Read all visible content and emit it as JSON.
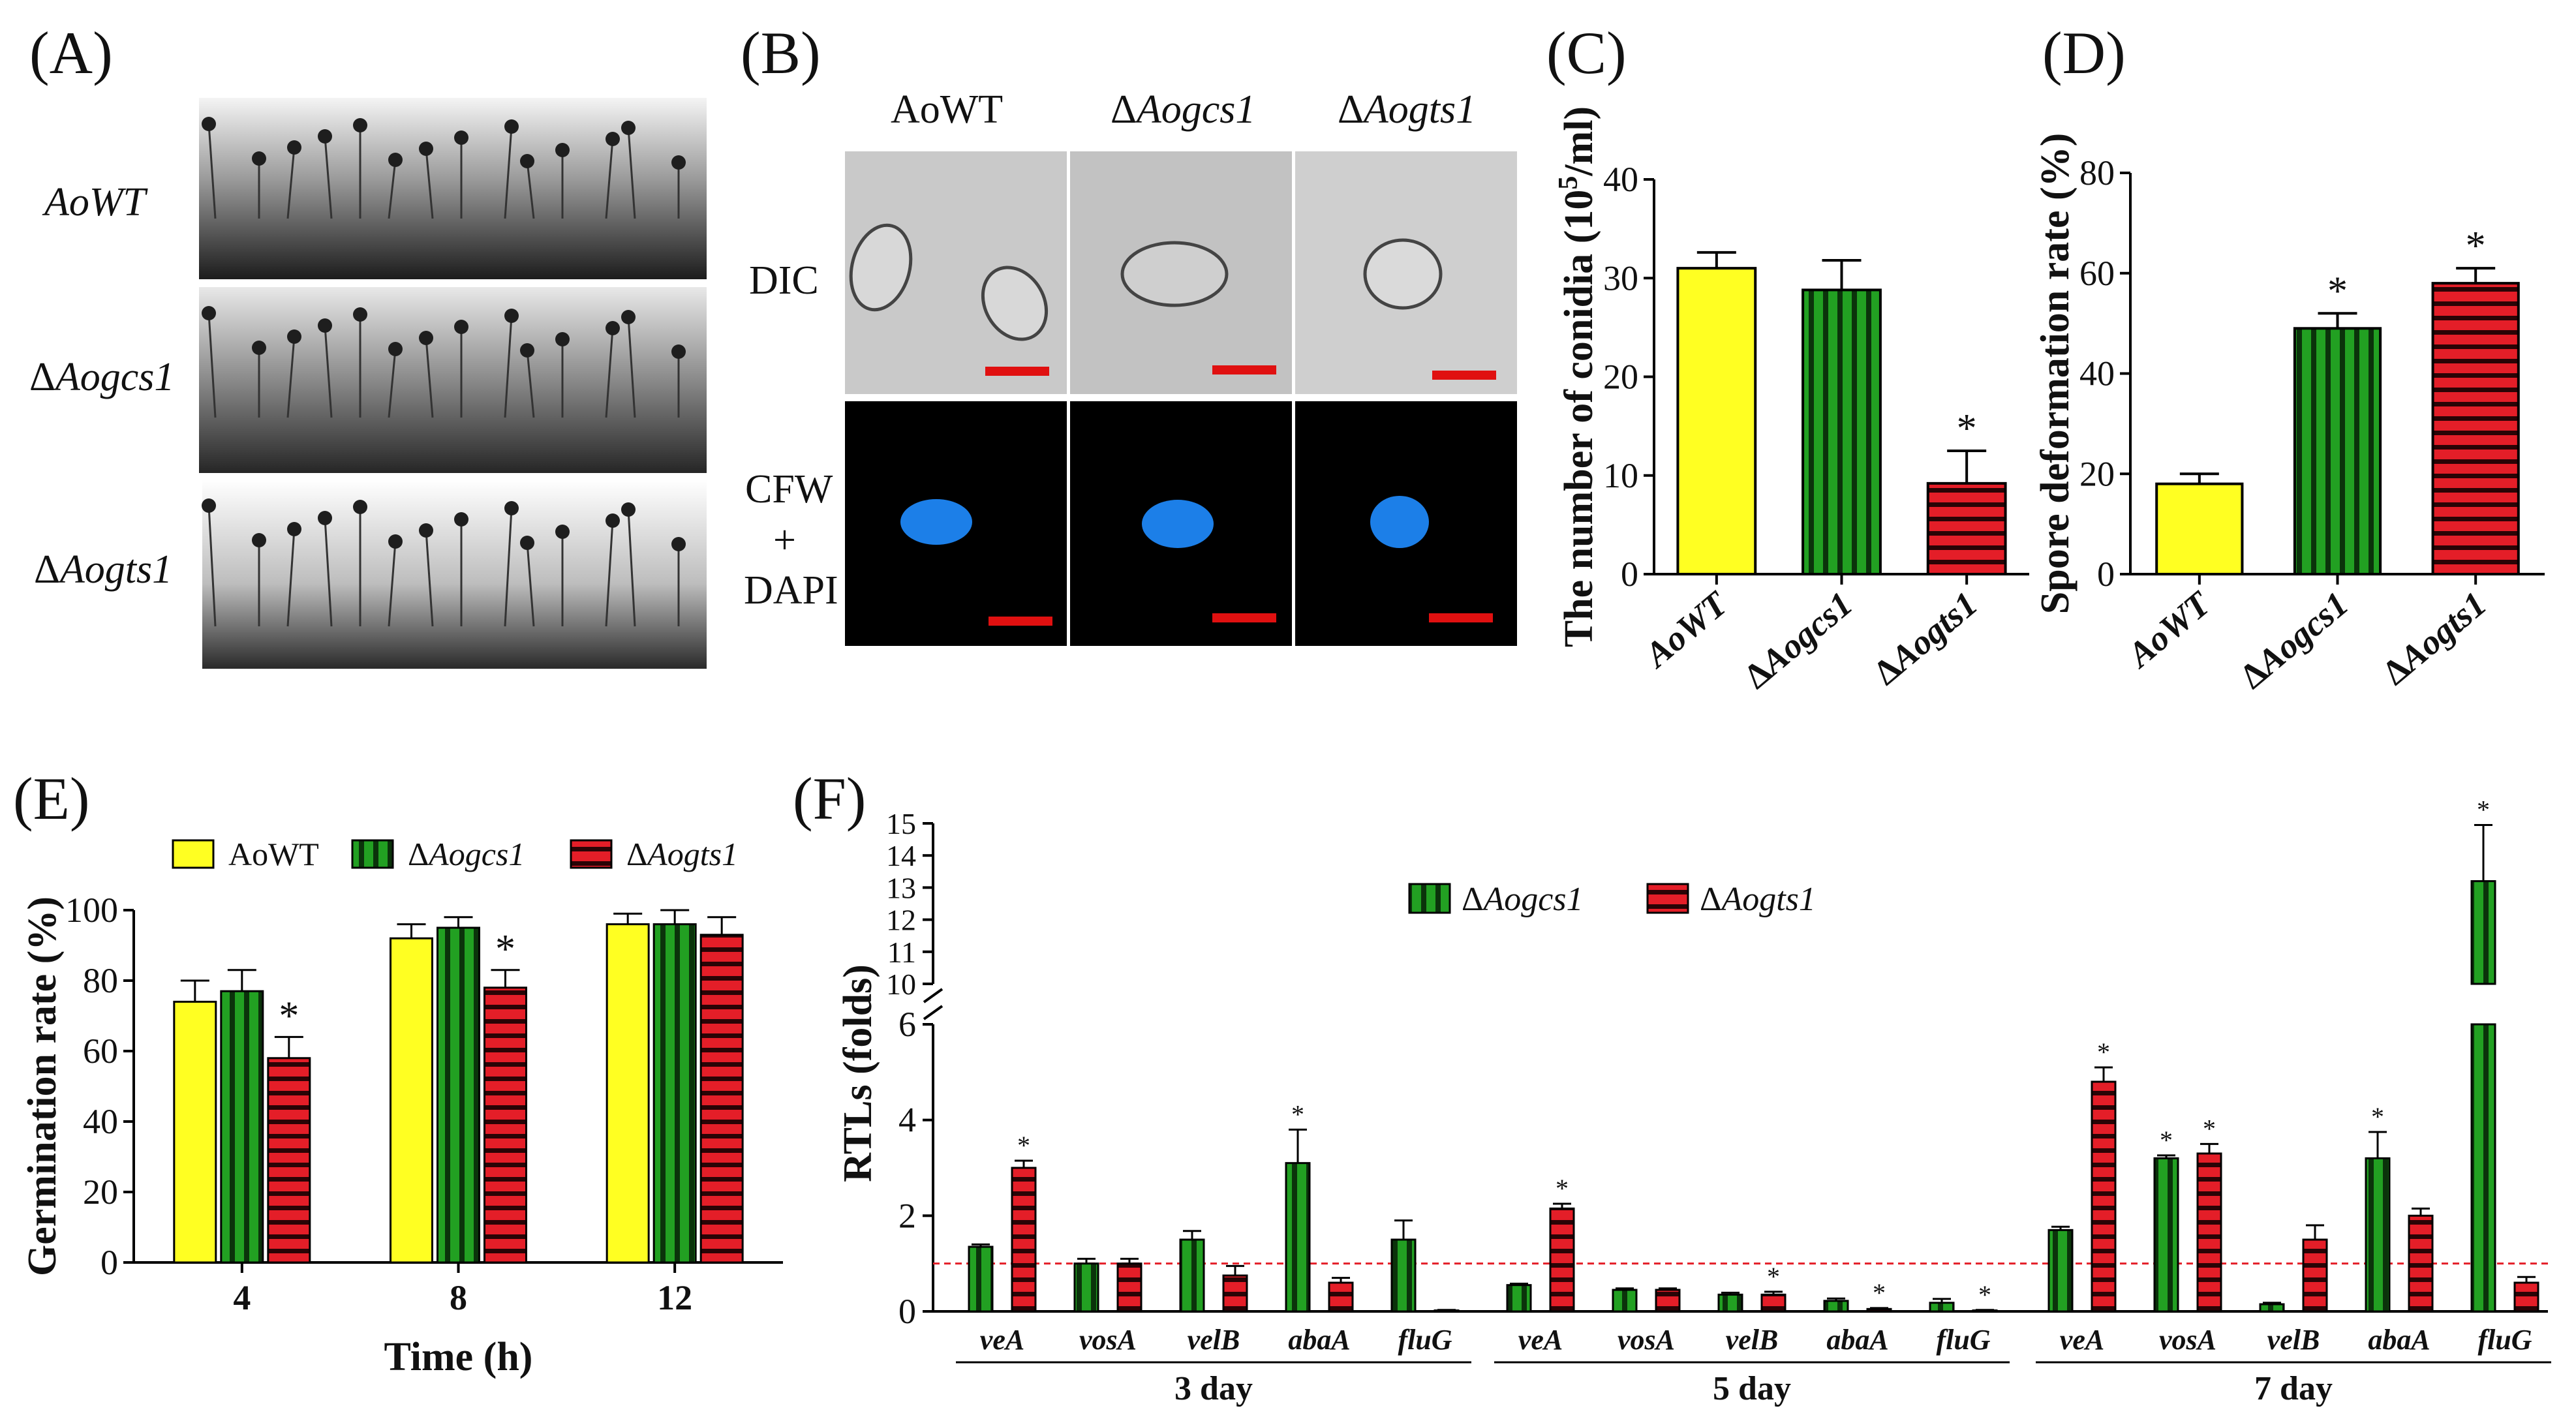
{
  "panels": {
    "A": {
      "label": "(A)",
      "rows": [
        {
          "pre": "",
          "it": "AoWT"
        },
        {
          "pre": "Δ",
          "it": "Aogcs1"
        },
        {
          "pre": "Δ",
          "it": "Aogts1"
        }
      ]
    },
    "B": {
      "label": "(B)",
      "columns": [
        {
          "pre": "",
          "it": "AoWT"
        },
        {
          "pre": "Δ",
          "it": "Aogcs1"
        },
        {
          "pre": "Δ",
          "it": "Aogts1"
        }
      ],
      "rows": [
        "DIC",
        "CFW",
        "+",
        "DAPI"
      ],
      "scale_bar_color": "#e01010"
    },
    "C": {
      "label": "(C)"
    },
    "D": {
      "label": "(D)"
    },
    "E": {
      "label": "(E)"
    },
    "F": {
      "label": "(F)"
    }
  },
  "colors": {
    "wt": "#ffff22",
    "gcs1": "#22a022",
    "gts1": "#e41e28",
    "ref_line": "#e41e28"
  },
  "chart_data": [
    {
      "panel": "C",
      "type": "bar",
      "ylabel_pre": "The number of conidia (10",
      "ylabel_sup": "5",
      "ylabel_post": "/ml)",
      "ylim": [
        0,
        40
      ],
      "yticks": [
        0,
        10,
        20,
        30,
        40
      ],
      "categories": [
        {
          "pre": "",
          "it": "AoWT"
        },
        {
          "pre": "Δ",
          "it": "Aogcs1"
        },
        {
          "pre": "Δ",
          "it": "Aogts1"
        }
      ],
      "values": [
        31.0,
        28.8,
        9.2
      ],
      "errors": [
        1.6,
        3.0,
        3.3
      ],
      "sig": [
        "",
        "",
        "*"
      ]
    },
    {
      "panel": "D",
      "type": "bar",
      "ylabel": "Spore deformation rate (%)",
      "ylim": [
        0,
        80
      ],
      "yticks": [
        0,
        20,
        40,
        60,
        80
      ],
      "categories": [
        {
          "pre": "",
          "it": "AoWT"
        },
        {
          "pre": "Δ",
          "it": "Aogcs1"
        },
        {
          "pre": "Δ",
          "it": "Aogts1"
        }
      ],
      "values": [
        18.0,
        49.0,
        58.0
      ],
      "errors": [
        2.0,
        3.0,
        3.0
      ],
      "sig": [
        "",
        "*",
        "*"
      ]
    },
    {
      "panel": "E",
      "type": "bar",
      "xlabel": "Time (h)",
      "ylabel": "Germination rate (%)",
      "ylim": [
        0,
        100
      ],
      "yticks": [
        0,
        20,
        40,
        60,
        80,
        100
      ],
      "categories": [
        "4",
        "8",
        "12"
      ],
      "legend_position": "top",
      "series": [
        {
          "name_pre": "",
          "name_it": "AoWT",
          "values": [
            74,
            92,
            96
          ],
          "errors": [
            6,
            4,
            3
          ],
          "sig": [
            "",
            "",
            ""
          ]
        },
        {
          "name_pre": "Δ",
          "name_it": "Aogcs1",
          "values": [
            77,
            95,
            96
          ],
          "errors": [
            6,
            3,
            4
          ],
          "sig": [
            "",
            "",
            ""
          ]
        },
        {
          "name_pre": "Δ",
          "name_it": "Aogts1",
          "values": [
            58,
            78,
            93
          ],
          "errors": [
            6,
            5,
            5
          ],
          "sig": [
            "*",
            "*",
            ""
          ]
        }
      ]
    },
    {
      "panel": "F",
      "type": "bar",
      "ylabel": "RTLs (folds)",
      "y_axis_broken": true,
      "yticks_lower": [
        0,
        2,
        4,
        6
      ],
      "yticks_upper": [
        10,
        11,
        12,
        13,
        14,
        15
      ],
      "reference_line": 1,
      "legend_position": "top-center",
      "groups": [
        "3 day",
        "5 day",
        "7 day"
      ],
      "genes": [
        "veA",
        "vosA",
        "velB",
        "abaA",
        "fluG"
      ],
      "series": [
        {
          "name_pre": "Δ",
          "name_it": "Aogcs1",
          "values": [
            1.35,
            1.0,
            1.5,
            3.1,
            1.5,
            0.55,
            0.45,
            0.35,
            0.22,
            0.18,
            1.7,
            3.2,
            0.15,
            3.2,
            13.2
          ],
          "errors": [
            0.05,
            0.1,
            0.18,
            0.7,
            0.4,
            0.03,
            0.03,
            0.04,
            0.05,
            0.08,
            0.07,
            0.06,
            0.03,
            0.55,
            1.75
          ],
          "sig": [
            "",
            "",
            "",
            "*",
            "",
            "",
            "",
            "",
            "",
            "",
            "",
            "*",
            "",
            "*",
            "*"
          ]
        },
        {
          "name_pre": "Δ",
          "name_it": "Aogts1",
          "values": [
            3.0,
            1.0,
            0.75,
            0.6,
            0.02,
            2.15,
            0.45,
            0.35,
            0.05,
            0.02,
            4.8,
            3.3,
            1.5,
            2.0,
            0.6
          ],
          "errors": [
            0.15,
            0.1,
            0.2,
            0.1,
            0.01,
            0.1,
            0.03,
            0.06,
            0.02,
            0.01,
            0.3,
            0.2,
            0.3,
            0.15,
            0.12
          ],
          "sig": [
            "*",
            "",
            "",
            "",
            "",
            "*",
            "",
            "*",
            "*",
            "*",
            "*",
            "*",
            "",
            "",
            ""
          ]
        }
      ]
    }
  ]
}
